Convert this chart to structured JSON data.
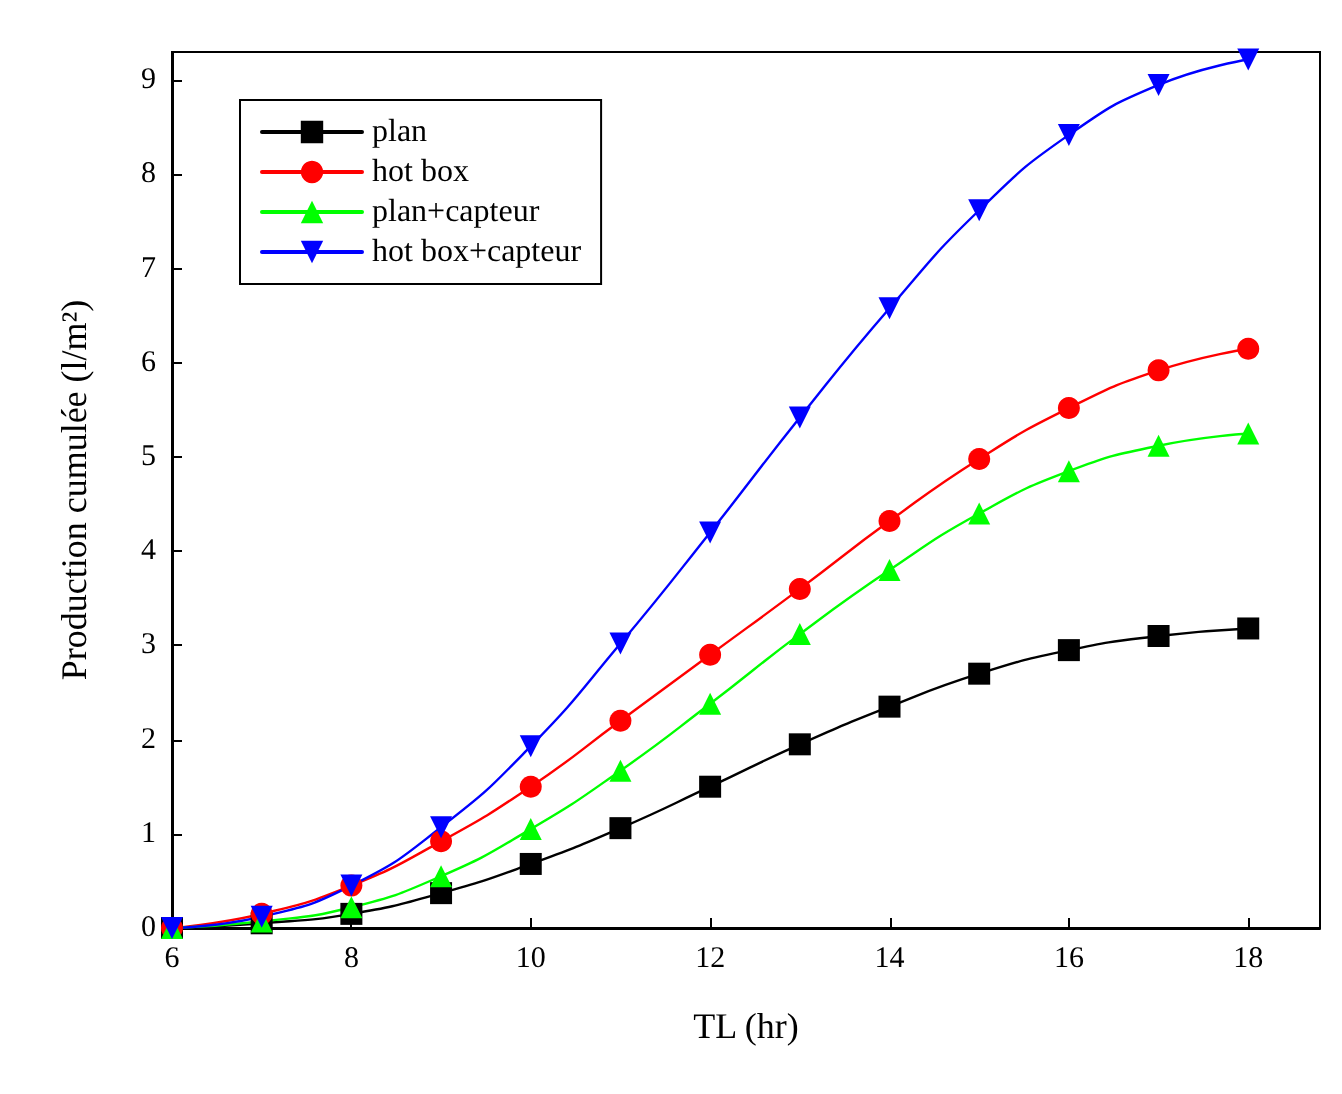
{
  "chart_data": {
    "type": "line",
    "xlabel": "TL (hr)",
    "ylabel": "Production cumulée (l/m²)",
    "x": [
      6,
      7,
      8,
      9,
      10,
      11,
      12,
      13,
      14,
      15,
      16,
      17,
      18
    ],
    "xlim": [
      6,
      18.8
    ],
    "xticks": [
      6,
      8,
      10,
      12,
      14,
      16,
      18
    ],
    "ylim": [
      0,
      9.3
    ],
    "yticks": [
      0,
      1,
      2,
      3,
      4,
      5,
      6,
      7,
      8,
      9
    ],
    "grid": false,
    "legend": "top left",
    "line_style": "solid",
    "series": [
      {
        "name": "plan",
        "color": "#000000",
        "marker": "square",
        "values": [
          0,
          0.05,
          0.15,
          0.37,
          0.68,
          1.06,
          1.5,
          1.95,
          2.35,
          2.7,
          2.95,
          3.1,
          3.18
        ]
      },
      {
        "name": "hot box",
        "color": "#ff0000",
        "marker": "circle",
        "values": [
          0,
          0.15,
          0.45,
          0.92,
          1.5,
          2.2,
          2.9,
          3.6,
          4.32,
          4.98,
          5.52,
          5.92,
          6.15
        ]
      },
      {
        "name": "plan+capteur",
        "color": "#00ff00",
        "marker": "triangle",
        "values": [
          0,
          0.07,
          0.22,
          0.55,
          1.05,
          1.67,
          2.38,
          3.12,
          3.8,
          4.4,
          4.85,
          5.12,
          5.25
        ]
      },
      {
        "name": "hot box+capteur",
        "color": "#0000ff",
        "marker": "triangle-down",
        "values": [
          0,
          0.12,
          0.45,
          1.07,
          1.93,
          3.02,
          4.2,
          5.42,
          6.58,
          7.62,
          8.42,
          8.95,
          9.22
        ]
      }
    ]
  }
}
